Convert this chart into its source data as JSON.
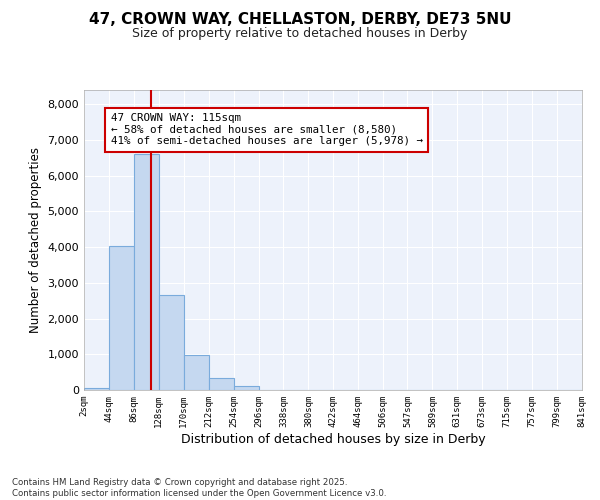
{
  "title1": "47, CROWN WAY, CHELLASTON, DERBY, DE73 5NU",
  "title2": "Size of property relative to detached houses in Derby",
  "xlabel": "Distribution of detached houses by size in Derby",
  "ylabel": "Number of detached properties",
  "bar_values": [
    60,
    4040,
    6620,
    2650,
    970,
    330,
    120,
    0,
    0,
    0,
    0,
    0,
    0,
    0,
    0,
    0,
    0,
    0,
    0,
    0
  ],
  "bin_labels": [
    "2sqm",
    "44sqm",
    "86sqm",
    "128sqm",
    "170sqm",
    "212sqm",
    "254sqm",
    "296sqm",
    "338sqm",
    "380sqm",
    "422sqm",
    "464sqm",
    "506sqm",
    "547sqm",
    "589sqm",
    "631sqm",
    "673sqm",
    "715sqm",
    "757sqm",
    "799sqm",
    "841sqm"
  ],
  "bar_color": "#c5d8f0",
  "bar_edgecolor": "#7aabdc",
  "bar_linewidth": 0.8,
  "bg_color": "#edf2fb",
  "grid_color": "#ffffff",
  "vline_x": 115,
  "vline_color": "#cc0000",
  "annotation_text": "47 CROWN WAY: 115sqm\n← 58% of detached houses are smaller (8,580)\n41% of semi-detached houses are larger (5,978) →",
  "annotation_box_edgecolor": "#cc0000",
  "ylim": [
    0,
    8400
  ],
  "yticks": [
    0,
    1000,
    2000,
    3000,
    4000,
    5000,
    6000,
    7000,
    8000
  ],
  "footer_text": "Contains HM Land Registry data © Crown copyright and database right 2025.\nContains public sector information licensed under the Open Government Licence v3.0.",
  "bin_width": 42
}
